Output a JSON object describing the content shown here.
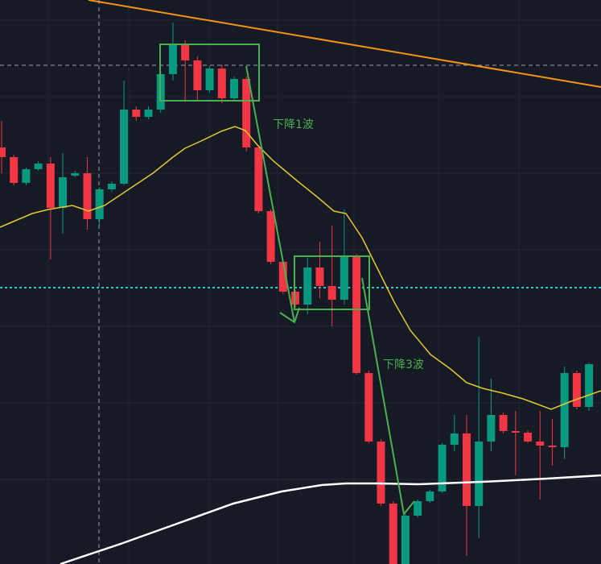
{
  "chart_data": {
    "type": "candlestick",
    "ylim": [
      0,
      700
    ],
    "annotations": [
      "下降1波",
      "下降3波"
    ],
    "up_color": "#089981",
    "down_color": "#f23645",
    "open": [
      517,
      505,
      473,
      490,
      497,
      442,
      482,
      485,
      428,
      465,
      472,
      564,
      555,
      564,
      608,
      645,
      625,
      588,
      615,
      578,
      602,
      517,
      438,
      375,
      338,
      322,
      368,
      345,
      328,
      382,
      237,
      152,
      75,
      0,
      60,
      78,
      90,
      148,
      162,
      72,
      152,
      185,
      165,
      163,
      152,
      147,
      145,
      237,
      195
    ],
    "high": [
      550,
      508,
      492,
      500,
      505,
      510,
      488,
      505,
      468,
      475,
      600,
      568,
      568,
      612,
      672,
      650,
      630,
      618,
      620,
      605,
      605,
      520,
      440,
      378,
      340,
      380,
      400,
      420,
      440,
      385,
      240,
      155,
      78,
      62,
      80,
      92,
      150,
      185,
      185,
      282,
      230,
      188,
      190,
      166,
      190,
      180,
      245,
      240,
      250
    ],
    "low": [
      485,
      470,
      470,
      488,
      378,
      410,
      480,
      415,
      420,
      462,
      470,
      550,
      552,
      560,
      600,
      575,
      575,
      585,
      572,
      575,
      512,
      435,
      372,
      335,
      318,
      310,
      330,
      295,
      322,
      235,
      150,
      72,
      0,
      0,
      58,
      76,
      88,
      140,
      10,
      32,
      140,
      162,
      110,
      150,
      80,
      122,
      130,
      192,
      190
    ],
    "close": [
      505,
      473,
      490,
      497,
      442,
      480,
      485,
      428,
      465,
      472,
      564,
      555,
      564,
      608,
      645,
      625,
      588,
      615,
      578,
      602,
      517,
      438,
      375,
      338,
      322,
      368,
      345,
      328,
      382,
      237,
      152,
      75,
      0,
      60,
      78,
      90,
      148,
      162,
      72,
      152,
      185,
      165,
      163,
      152,
      147,
      145,
      237,
      195,
      248
    ]
  }
}
